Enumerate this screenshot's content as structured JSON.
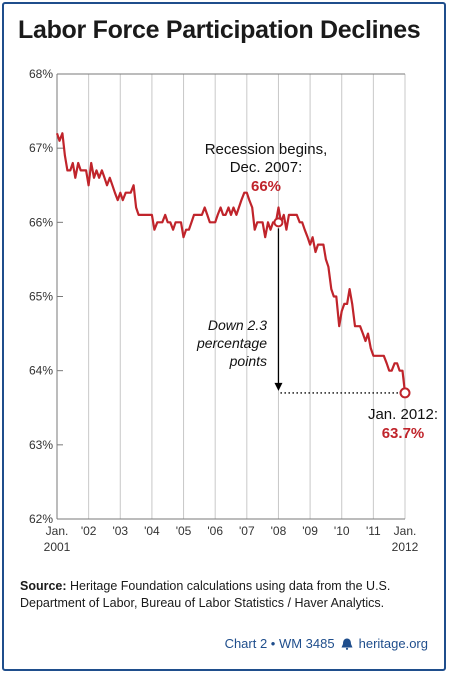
{
  "chart_data": {
    "type": "line",
    "title": "Labor Force Participation Declines",
    "ylim": [
      62,
      68
    ],
    "yticks": [
      "62%",
      "63%",
      "64%",
      "65%",
      "66%",
      "67%",
      "68%"
    ],
    "xlim": [
      2001.0,
      2012.0
    ],
    "xtick_labels": [
      {
        "x": 2001,
        "line1": "Jan.",
        "line2": "2001"
      },
      {
        "x": 2002,
        "line1": "'02",
        "line2": ""
      },
      {
        "x": 2003,
        "line1": "'03",
        "line2": ""
      },
      {
        "x": 2004,
        "line1": "'04",
        "line2": ""
      },
      {
        "x": 2005,
        "line1": "'05",
        "line2": ""
      },
      {
        "x": 2006,
        "line1": "'06",
        "line2": ""
      },
      {
        "x": 2007,
        "line1": "'07",
        "line2": ""
      },
      {
        "x": 2008,
        "line1": "'08",
        "line2": ""
      },
      {
        "x": 2009,
        "line1": "'09",
        "line2": ""
      },
      {
        "x": 2010,
        "line1": "'10",
        "line2": ""
      },
      {
        "x": 2011,
        "line1": "'11",
        "line2": ""
      },
      {
        "x": 2012,
        "line1": "Jan.",
        "line2": "2012"
      }
    ],
    "series": [
      {
        "color": "#c0242b",
        "points": [
          [
            2001.0,
            67.2
          ],
          [
            2001.08,
            67.1
          ],
          [
            2001.17,
            67.2
          ],
          [
            2001.25,
            66.9
          ],
          [
            2001.33,
            66.7
          ],
          [
            2001.42,
            66.7
          ],
          [
            2001.5,
            66.8
          ],
          [
            2001.58,
            66.6
          ],
          [
            2001.67,
            66.8
          ],
          [
            2001.75,
            66.7
          ],
          [
            2001.83,
            66.7
          ],
          [
            2001.92,
            66.7
          ],
          [
            2002.0,
            66.5
          ],
          [
            2002.08,
            66.8
          ],
          [
            2002.17,
            66.6
          ],
          [
            2002.25,
            66.7
          ],
          [
            2002.33,
            66.6
          ],
          [
            2002.42,
            66.7
          ],
          [
            2002.5,
            66.6
          ],
          [
            2002.58,
            66.5
          ],
          [
            2002.67,
            66.6
          ],
          [
            2002.75,
            66.5
          ],
          [
            2002.83,
            66.4
          ],
          [
            2002.92,
            66.3
          ],
          [
            2003.0,
            66.4
          ],
          [
            2003.08,
            66.3
          ],
          [
            2003.17,
            66.4
          ],
          [
            2003.25,
            66.4
          ],
          [
            2003.33,
            66.4
          ],
          [
            2003.42,
            66.5
          ],
          [
            2003.5,
            66.2
          ],
          [
            2003.58,
            66.1
          ],
          [
            2003.67,
            66.1
          ],
          [
            2003.75,
            66.1
          ],
          [
            2003.83,
            66.1
          ],
          [
            2003.92,
            66.1
          ],
          [
            2004.0,
            66.1
          ],
          [
            2004.08,
            65.9
          ],
          [
            2004.17,
            66.0
          ],
          [
            2004.25,
            66.0
          ],
          [
            2004.33,
            66.0
          ],
          [
            2004.42,
            66.1
          ],
          [
            2004.5,
            66.0
          ],
          [
            2004.58,
            66.0
          ],
          [
            2004.67,
            65.9
          ],
          [
            2004.75,
            66.0
          ],
          [
            2004.83,
            66.0
          ],
          [
            2004.92,
            66.0
          ],
          [
            2005.0,
            65.8
          ],
          [
            2005.08,
            65.9
          ],
          [
            2005.17,
            65.9
          ],
          [
            2005.25,
            66.0
          ],
          [
            2005.33,
            66.1
          ],
          [
            2005.42,
            66.1
          ],
          [
            2005.5,
            66.1
          ],
          [
            2005.58,
            66.1
          ],
          [
            2005.67,
            66.2
          ],
          [
            2005.75,
            66.1
          ],
          [
            2005.83,
            66.0
          ],
          [
            2005.92,
            66.0
          ],
          [
            2006.0,
            66.0
          ],
          [
            2006.08,
            66.1
          ],
          [
            2006.17,
            66.2
          ],
          [
            2006.25,
            66.1
          ],
          [
            2006.33,
            66.1
          ],
          [
            2006.42,
            66.2
          ],
          [
            2006.5,
            66.1
          ],
          [
            2006.58,
            66.2
          ],
          [
            2006.67,
            66.1
          ],
          [
            2006.75,
            66.2
          ],
          [
            2006.83,
            66.3
          ],
          [
            2006.92,
            66.4
          ],
          [
            2007.0,
            66.4
          ],
          [
            2007.08,
            66.3
          ],
          [
            2007.17,
            66.2
          ],
          [
            2007.25,
            65.9
          ],
          [
            2007.33,
            66.0
          ],
          [
            2007.42,
            66.0
          ],
          [
            2007.5,
            66.0
          ],
          [
            2007.58,
            65.8
          ],
          [
            2007.67,
            66.0
          ],
          [
            2007.75,
            65.9
          ],
          [
            2007.83,
            66.0
          ],
          [
            2007.92,
            66.0
          ],
          [
            2008.0,
            66.2
          ],
          [
            2008.08,
            66.0
          ],
          [
            2008.17,
            66.1
          ],
          [
            2008.25,
            65.9
          ],
          [
            2008.33,
            66.1
          ],
          [
            2008.42,
            66.1
          ],
          [
            2008.5,
            66.1
          ],
          [
            2008.58,
            66.1
          ],
          [
            2008.67,
            66.0
          ],
          [
            2008.75,
            66.0
          ],
          [
            2008.83,
            65.9
          ],
          [
            2008.92,
            65.8
          ],
          [
            2009.0,
            65.7
          ],
          [
            2009.08,
            65.8
          ],
          [
            2009.17,
            65.6
          ],
          [
            2009.25,
            65.7
          ],
          [
            2009.33,
            65.7
          ],
          [
            2009.42,
            65.7
          ],
          [
            2009.5,
            65.5
          ],
          [
            2009.58,
            65.4
          ],
          [
            2009.67,
            65.1
          ],
          [
            2009.75,
            65.0
          ],
          [
            2009.83,
            65.0
          ],
          [
            2009.92,
            64.6
          ],
          [
            2010.0,
            64.8
          ],
          [
            2010.08,
            64.9
          ],
          [
            2010.17,
            64.9
          ],
          [
            2010.25,
            65.1
          ],
          [
            2010.33,
            64.9
          ],
          [
            2010.42,
            64.6
          ],
          [
            2010.5,
            64.6
          ],
          [
            2010.58,
            64.6
          ],
          [
            2010.67,
            64.5
          ],
          [
            2010.75,
            64.4
          ],
          [
            2010.83,
            64.5
          ],
          [
            2010.92,
            64.3
          ],
          [
            2011.0,
            64.2
          ],
          [
            2011.08,
            64.2
          ],
          [
            2011.17,
            64.2
          ],
          [
            2011.25,
            64.2
          ],
          [
            2011.33,
            64.2
          ],
          [
            2011.42,
            64.1
          ],
          [
            2011.5,
            64.0
          ],
          [
            2011.58,
            64.0
          ],
          [
            2011.67,
            64.1
          ],
          [
            2011.75,
            64.1
          ],
          [
            2011.83,
            64.0
          ],
          [
            2011.92,
            64.0
          ],
          [
            2012.0,
            63.7
          ]
        ]
      }
    ],
    "annotations": [
      {
        "x": 2008.0,
        "y": 66.0,
        "lines": [
          "Recession begins,",
          "Dec. 2007:"
        ],
        "value": "66%"
      },
      {
        "x": 2012.0,
        "y": 63.7,
        "lines": [
          "Jan. 2012:"
        ],
        "value": "63.7%"
      },
      {
        "lines": [
          "Down 2.3",
          "percentage",
          "points"
        ]
      }
    ],
    "grid": "vertical",
    "colors": {
      "line": "#c0242b",
      "accent": "#1f4e8c",
      "grid": "#c8c8c8"
    }
  },
  "source": {
    "label": "Source:",
    "text": "Heritage Foundation calculations using data from the U.S. Department of Labor, Bureau of Labor Statistics / Haver Analytics."
  },
  "footer": {
    "text": "Chart 2 • WM 3485",
    "site": "heritage.org",
    "icon": "liberty-bell-icon"
  }
}
